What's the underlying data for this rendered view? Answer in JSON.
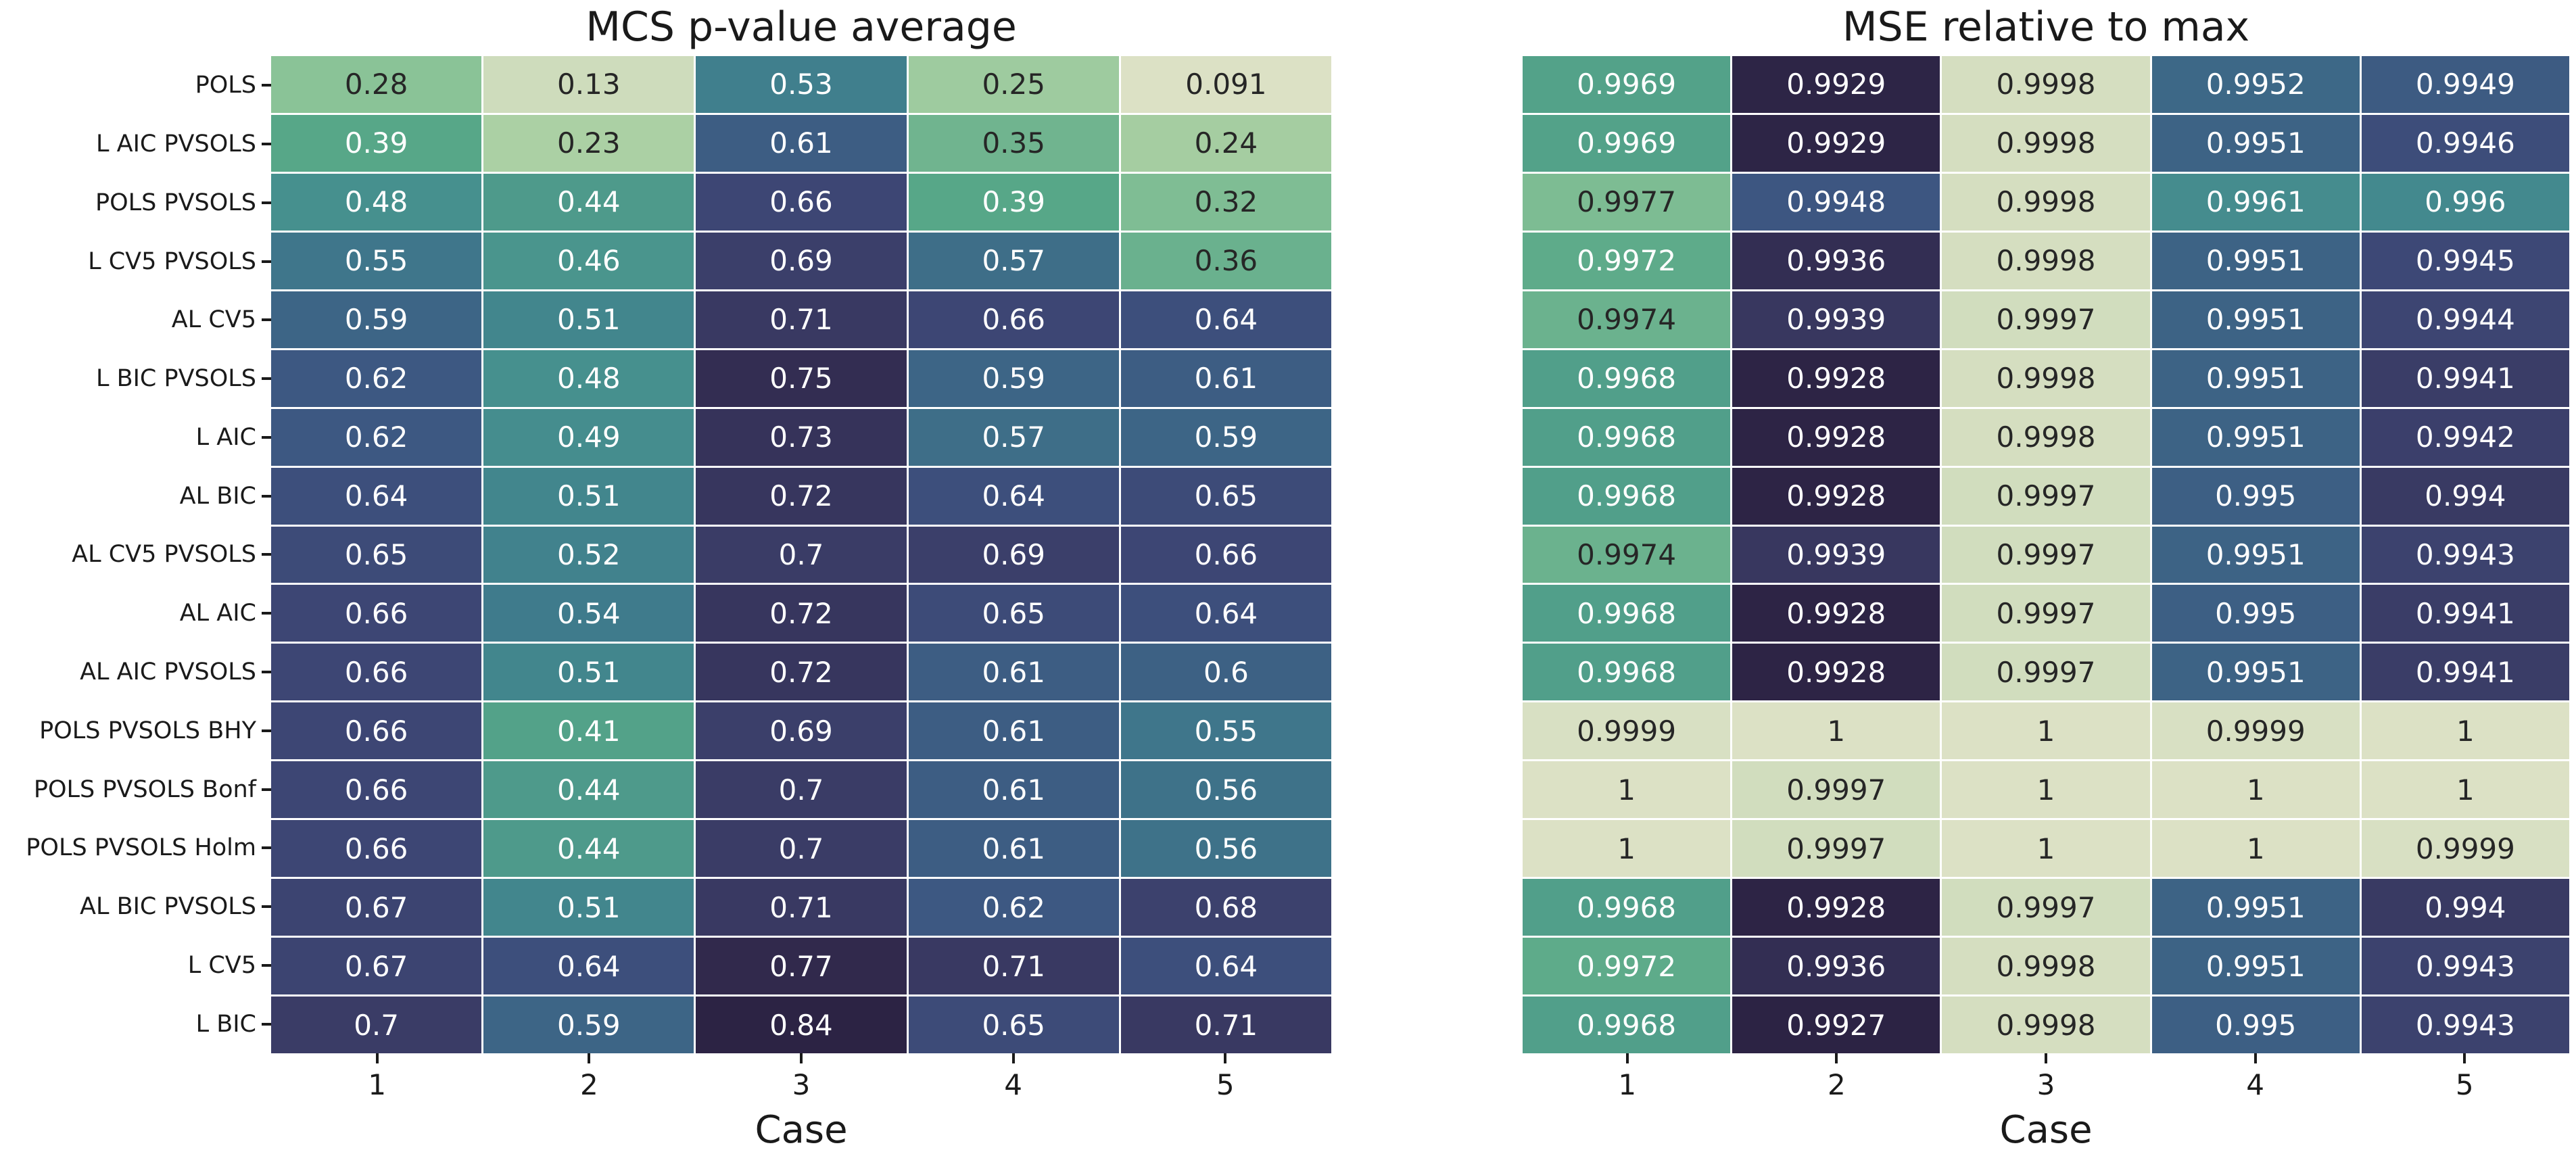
{
  "chart_data": [
    {
      "type": "heatmap",
      "title": "MCS p-value average",
      "xlabel": "Case",
      "x_ticks": [
        "1",
        "2",
        "3",
        "4",
        "5"
      ],
      "y_ticks": [
        "POLS",
        "L AIC PVSOLS",
        "POLS PVSOLS",
        "L CV5 PVSOLS",
        "AL CV5",
        "L BIC PVSOLS",
        "L AIC",
        "AL BIC",
        "AL CV5 PVSOLS",
        "AL AIC",
        "AL AIC PVSOLS",
        "POLS PVSOLS BHY",
        "POLS PVSOLS Bonf",
        "POLS PVSOLS Holm",
        "AL BIC PVSOLS",
        "L CV5",
        "L BIC"
      ],
      "show_y_labels": true,
      "vmin": 0.091,
      "vmax": 0.84,
      "reverse_colormap": false,
      "values": [
        [
          "0.28",
          "0.13",
          "0.53",
          "0.25",
          "0.091"
        ],
        [
          "0.39",
          "0.23",
          "0.61",
          "0.35",
          "0.24"
        ],
        [
          "0.48",
          "0.44",
          "0.66",
          "0.39",
          "0.32"
        ],
        [
          "0.55",
          "0.46",
          "0.69",
          "0.57",
          "0.36"
        ],
        [
          "0.59",
          "0.51",
          "0.71",
          "0.66",
          "0.64"
        ],
        [
          "0.62",
          "0.48",
          "0.75",
          "0.59",
          "0.61"
        ],
        [
          "0.62",
          "0.49",
          "0.73",
          "0.57",
          "0.59"
        ],
        [
          "0.64",
          "0.51",
          "0.72",
          "0.64",
          "0.65"
        ],
        [
          "0.65",
          "0.52",
          "0.7",
          "0.69",
          "0.66"
        ],
        [
          "0.66",
          "0.54",
          "0.72",
          "0.65",
          "0.64"
        ],
        [
          "0.66",
          "0.51",
          "0.72",
          "0.61",
          "0.6"
        ],
        [
          "0.66",
          "0.41",
          "0.69",
          "0.61",
          "0.55"
        ],
        [
          "0.66",
          "0.44",
          "0.7",
          "0.61",
          "0.56"
        ],
        [
          "0.66",
          "0.44",
          "0.7",
          "0.61",
          "0.56"
        ],
        [
          "0.67",
          "0.51",
          "0.71",
          "0.62",
          "0.68"
        ],
        [
          "0.67",
          "0.64",
          "0.77",
          "0.71",
          "0.64"
        ],
        [
          "0.7",
          "0.59",
          "0.84",
          "0.65",
          "0.71"
        ]
      ]
    },
    {
      "type": "heatmap",
      "title": "MSE relative to max",
      "xlabel": "Case",
      "x_ticks": [
        "1",
        "2",
        "3",
        "4",
        "5"
      ],
      "y_ticks": [
        "POLS",
        "L AIC PVSOLS",
        "POLS PVSOLS",
        "L CV5 PVSOLS",
        "AL CV5",
        "L BIC PVSOLS",
        "L AIC",
        "AL BIC",
        "AL CV5 PVSOLS",
        "AL AIC",
        "AL AIC PVSOLS",
        "POLS PVSOLS BHY",
        "POLS PVSOLS Bonf",
        "POLS PVSOLS Holm",
        "AL BIC PVSOLS",
        "L CV5",
        "L BIC"
      ],
      "show_y_labels": false,
      "vmin": 0.9927,
      "vmax": 1.0,
      "reverse_colormap": true,
      "values": [
        [
          "0.9969",
          "0.9929",
          "0.9998",
          "0.9952",
          "0.9949"
        ],
        [
          "0.9969",
          "0.9929",
          "0.9998",
          "0.9951",
          "0.9946"
        ],
        [
          "0.9977",
          "0.9948",
          "0.9998",
          "0.9961",
          "0.996"
        ],
        [
          "0.9972",
          "0.9936",
          "0.9998",
          "0.9951",
          "0.9945"
        ],
        [
          "0.9974",
          "0.9939",
          "0.9997",
          "0.9951",
          "0.9944"
        ],
        [
          "0.9968",
          "0.9928",
          "0.9998",
          "0.9951",
          "0.9941"
        ],
        [
          "0.9968",
          "0.9928",
          "0.9998",
          "0.9951",
          "0.9942"
        ],
        [
          "0.9968",
          "0.9928",
          "0.9997",
          "0.995",
          "0.994"
        ],
        [
          "0.9974",
          "0.9939",
          "0.9997",
          "0.9951",
          "0.9943"
        ],
        [
          "0.9968",
          "0.9928",
          "0.9997",
          "0.995",
          "0.9941"
        ],
        [
          "0.9968",
          "0.9928",
          "0.9997",
          "0.9951",
          "0.9941"
        ],
        [
          "0.9999",
          "1",
          "1",
          "0.9999",
          "1"
        ],
        [
          "1",
          "0.9997",
          "1",
          "1",
          "1"
        ],
        [
          "1",
          "0.9997",
          "1",
          "1",
          "0.9999"
        ],
        [
          "0.9968",
          "0.9928",
          "0.9997",
          "0.9951",
          "0.994"
        ],
        [
          "0.9972",
          "0.9936",
          "0.9998",
          "0.9951",
          "0.9943"
        ],
        [
          "0.9968",
          "0.9927",
          "0.9998",
          "0.995",
          "0.9943"
        ]
      ]
    }
  ],
  "style": {
    "colormap_stops": [
      [
        0.0,
        "#dce1c5"
      ],
      [
        0.186,
        "#abd0a4"
      ],
      [
        0.252,
        "#8ac397"
      ],
      [
        0.32,
        "#7cbb93"
      ],
      [
        0.399,
        "#57a788"
      ],
      [
        0.519,
        "#46908e"
      ],
      [
        0.586,
        "#407f8d"
      ],
      [
        0.666,
        "#3d6586"
      ],
      [
        0.72,
        "#3d5480"
      ],
      [
        0.76,
        "#3d4674"
      ],
      [
        0.813,
        "#3a3c66"
      ],
      [
        0.88,
        "#332d52"
      ],
      [
        0.915,
        "#30284a"
      ],
      [
        1.0,
        "#2c2344"
      ],
      "gap_color: #ffffff",
      "annotation_dark: #262626",
      "annotation_light: #ffffff"
    ],
    "annotation_dark": "#262626",
    "annotation_light": "#ffffff",
    "luminance_threshold": 0.375,
    "gap_color": "#ffffff"
  }
}
